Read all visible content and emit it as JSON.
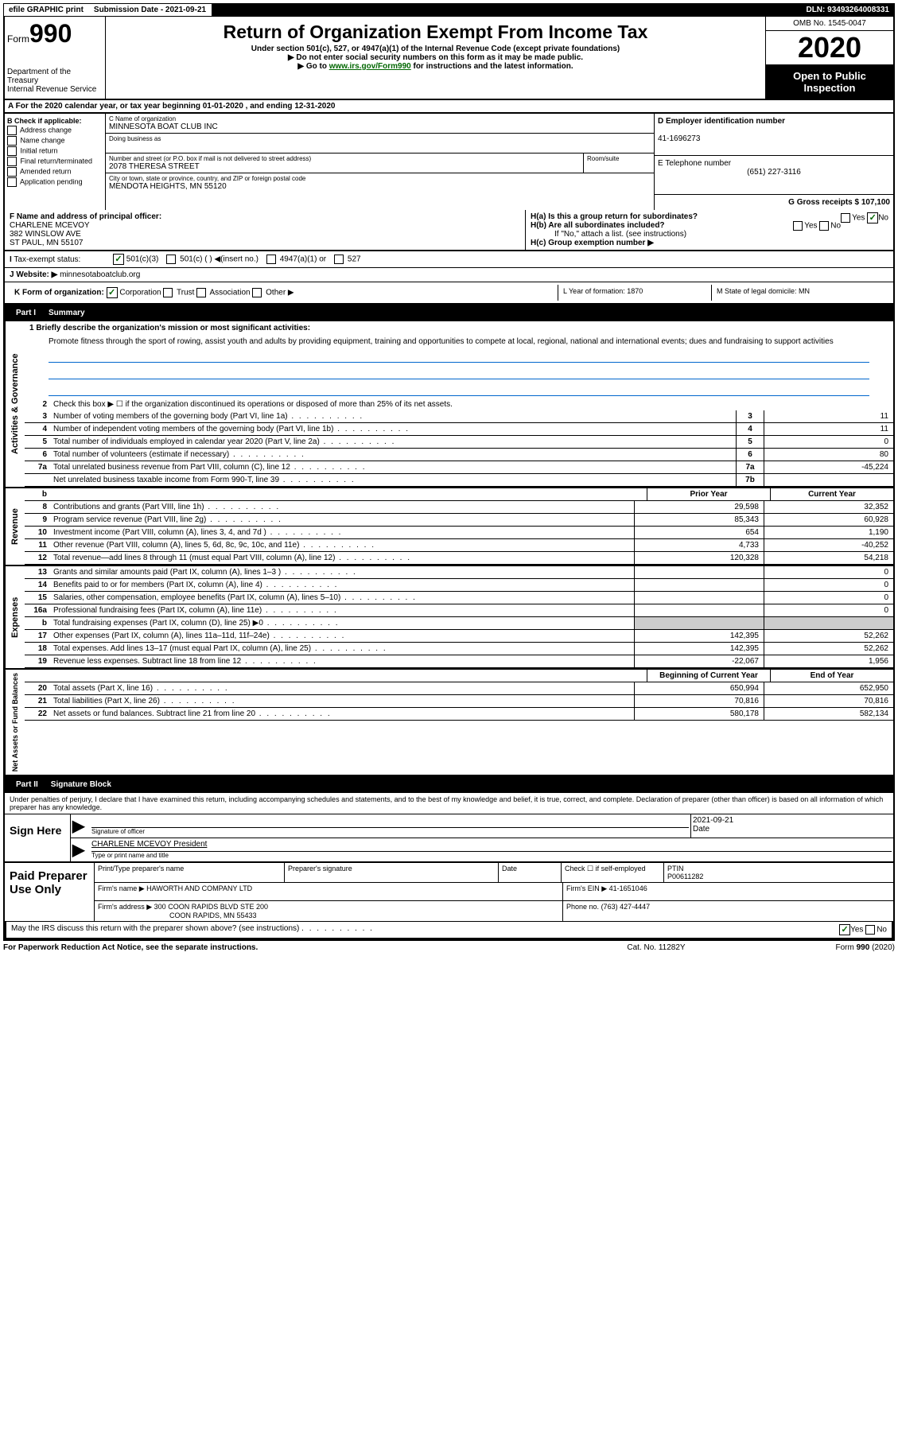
{
  "header": {
    "efile": "efile GRAPHIC print",
    "submission_label": "Submission Date - 2021-09-21",
    "dln": "DLN: 93493264008331"
  },
  "top": {
    "form_prefix": "Form",
    "form_number": "990",
    "dept": "Department of the Treasury",
    "irs": "Internal Revenue Service",
    "title": "Return of Organization Exempt From Income Tax",
    "subtitle": "Under section 501(c), 527, or 4947(a)(1) of the Internal Revenue Code (except private foundations)",
    "instr1": "▶ Do not enter social security numbers on this form as it may be made public.",
    "instr2_pre": "▶ Go to ",
    "instr2_link": "www.irs.gov/Form990",
    "instr2_post": " for instructions and the latest information.",
    "omb": "OMB No. 1545-0047",
    "year": "2020",
    "open": "Open to Public Inspection"
  },
  "row_a": "A   For the 2020 calendar year, or tax year beginning 01-01-2020     , and ending 12-31-2020",
  "b": {
    "lbl": "B Check if applicable:",
    "opts": [
      "Address change",
      "Name change",
      "Initial return",
      "Final return/terminated",
      "Amended return",
      "Application pending"
    ],
    "c_lbl": "C Name of organization",
    "c_val": "MINNESOTA BOAT CLUB INC",
    "dba": "Doing business as",
    "street_lbl": "Number and street (or P.O. box if mail is not delivered to street address)",
    "street_val": "2078 THERESA STREET",
    "room": "Room/suite",
    "city_lbl": "City or town, state or province, country, and ZIP or foreign postal code",
    "city_val": "MENDOTA HEIGHTS, MN  55120",
    "d_lbl": "D Employer identification number",
    "d_val": "41-1696273",
    "e_lbl": "E Telephone number",
    "e_val": "(651) 227-3116",
    "g_lbl": "G Gross receipts $ 107,100"
  },
  "fh": {
    "f_lbl": "F  Name and address of principal officer:",
    "f_name": "CHARLENE MCEVOY",
    "f_addr1": "382 WINSLOW AVE",
    "f_addr2": "ST PAUL, MN  55107",
    "ha": "H(a)  Is this a group return for subordinates?",
    "hb": "H(b)  Are all subordinates included?",
    "hb_note": "If \"No,\" attach a list. (see instructions)",
    "hc": "H(c)  Group exemption number ▶",
    "yes": "Yes",
    "no": "No"
  },
  "tax": {
    "lbl": "Tax-exempt status:",
    "opt1": "501(c)(3)",
    "opt2": "501(c) (  ) ◀(insert no.)",
    "opt3": "4947(a)(1) or",
    "opt4": "527"
  },
  "j": {
    "lbl": "J",
    "text": "Website: ▶",
    "val": "minnesotaboatclub.org"
  },
  "k": {
    "lbl": "K Form of organization:",
    "corp": "Corporation",
    "trust": "Trust",
    "assoc": "Association",
    "other": "Other ▶"
  },
  "l": {
    "lbl": "L Year of formation: 1870"
  },
  "m": {
    "lbl": "M State of legal domicile: MN"
  },
  "part1": {
    "title": "Part I",
    "name": "Summary"
  },
  "summary": {
    "side1": "Activities & Governance",
    "side2": "Revenue",
    "side3": "Expenses",
    "side4": "Net Assets or Fund Balances",
    "l1_lbl": "1  Briefly describe the organization's mission or most significant activities:",
    "l1_text": "Promote fitness through the sport of rowing, assist youth and adults by providing equipment, training and opportunities to compete at local, regional, national and international events; dues and fundraising to support activities",
    "l2": "Check this box ▶ ☐  if the organization discontinued its operations or disposed of more than 25% of its net assets.",
    "rows_ag": [
      {
        "n": "3",
        "t": "Number of voting members of the governing body (Part VI, line 1a)",
        "b": "3",
        "v": "11"
      },
      {
        "n": "4",
        "t": "Number of independent voting members of the governing body (Part VI, line 1b)",
        "b": "4",
        "v": "11"
      },
      {
        "n": "5",
        "t": "Total number of individuals employed in calendar year 2020 (Part V, line 2a)",
        "b": "5",
        "v": "0"
      },
      {
        "n": "6",
        "t": "Total number of volunteers (estimate if necessary)",
        "b": "6",
        "v": "80"
      },
      {
        "n": "7a",
        "t": "Total unrelated business revenue from Part VIII, column (C), line 12",
        "b": "7a",
        "v": "-45,224"
      },
      {
        "n": "",
        "t": "Net unrelated business taxable income from Form 990-T, line 39",
        "b": "7b",
        "v": ""
      }
    ],
    "col_prior": "Prior Year",
    "col_current": "Current Year",
    "col_begin": "Beginning of Current Year",
    "col_end": "End of Year",
    "rows_rev": [
      {
        "n": "8",
        "t": "Contributions and grants (Part VIII, line 1h)",
        "p": "29,598",
        "c": "32,352"
      },
      {
        "n": "9",
        "t": "Program service revenue (Part VIII, line 2g)",
        "p": "85,343",
        "c": "60,928"
      },
      {
        "n": "10",
        "t": "Investment income (Part VIII, column (A), lines 3, 4, and 7d )",
        "p": "654",
        "c": "1,190"
      },
      {
        "n": "11",
        "t": "Other revenue (Part VIII, column (A), lines 5, 6d, 8c, 9c, 10c, and 11e)",
        "p": "4,733",
        "c": "-40,252"
      },
      {
        "n": "12",
        "t": "Total revenue—add lines 8 through 11 (must equal Part VIII, column (A), line 12)",
        "p": "120,328",
        "c": "54,218"
      }
    ],
    "rows_exp": [
      {
        "n": "13",
        "t": "Grants and similar amounts paid (Part IX, column (A), lines 1–3 )",
        "p": "",
        "c": "0"
      },
      {
        "n": "14",
        "t": "Benefits paid to or for members (Part IX, column (A), line 4)",
        "p": "",
        "c": "0"
      },
      {
        "n": "15",
        "t": "Salaries, other compensation, employee benefits (Part IX, column (A), lines 5–10)",
        "p": "",
        "c": "0"
      },
      {
        "n": "16a",
        "t": "Professional fundraising fees (Part IX, column (A), line 11e)",
        "p": "",
        "c": "0"
      },
      {
        "n": "b",
        "t": "Total fundraising expenses (Part IX, column (D), line 25) ▶0",
        "p": "grey",
        "c": "grey"
      },
      {
        "n": "17",
        "t": "Other expenses (Part IX, column (A), lines 11a–11d, 11f–24e)",
        "p": "142,395",
        "c": "52,262"
      },
      {
        "n": "18",
        "t": "Total expenses. Add lines 13–17 (must equal Part IX, column (A), line 25)",
        "p": "142,395",
        "c": "52,262"
      },
      {
        "n": "19",
        "t": "Revenue less expenses. Subtract line 18 from line 12",
        "p": "-22,067",
        "c": "1,956"
      }
    ],
    "rows_net": [
      {
        "n": "20",
        "t": "Total assets (Part X, line 16)",
        "p": "650,994",
        "c": "652,950"
      },
      {
        "n": "21",
        "t": "Total liabilities (Part X, line 26)",
        "p": "70,816",
        "c": "70,816"
      },
      {
        "n": "22",
        "t": "Net assets or fund balances. Subtract line 21 from line 20",
        "p": "580,178",
        "c": "582,134"
      }
    ]
  },
  "part2": {
    "title": "Part II",
    "name": "Signature Block"
  },
  "sig": {
    "declare": "Under penalties of perjury, I declare that I have examined this return, including accompanying schedules and statements, and to the best of my knowledge and belief, it is true, correct, and complete. Declaration of preparer (other than officer) is based on all information of which preparer has any knowledge.",
    "sign_here": "Sign Here",
    "sig_officer": "Signature of officer",
    "date_lbl": "Date",
    "date_val": "2021-09-21",
    "name_title": "CHARLENE MCEVOY President",
    "type_lbl": "Type or print name and title",
    "paid": "Paid Preparer Use Only",
    "pp_name": "Print/Type preparer's name",
    "pp_sig": "Preparer's signature",
    "pp_date": "Date",
    "pp_check": "Check ☐  if self-employed",
    "ptin_lbl": "PTIN",
    "ptin_val": "P00611282",
    "firm_name_lbl": "Firm's name      ▶",
    "firm_name": "HAWORTH AND COMPANY LTD",
    "firm_ein_lbl": "Firm's EIN ▶",
    "firm_ein": "41-1651046",
    "firm_addr_lbl": "Firm's address ▶",
    "firm_addr1": "300 COON RAPIDS BLVD STE 200",
    "firm_addr2": "COON RAPIDS, MN  55433",
    "phone_lbl": "Phone no.",
    "phone_val": "(763) 427-4447",
    "discuss": "May the IRS discuss this return with the preparer shown above? (see instructions)"
  },
  "footer": {
    "notice": "For Paperwork Reduction Act Notice, see the separate instructions.",
    "cat": "Cat. No. 11282Y",
    "form": "Form 990 (2020)"
  }
}
